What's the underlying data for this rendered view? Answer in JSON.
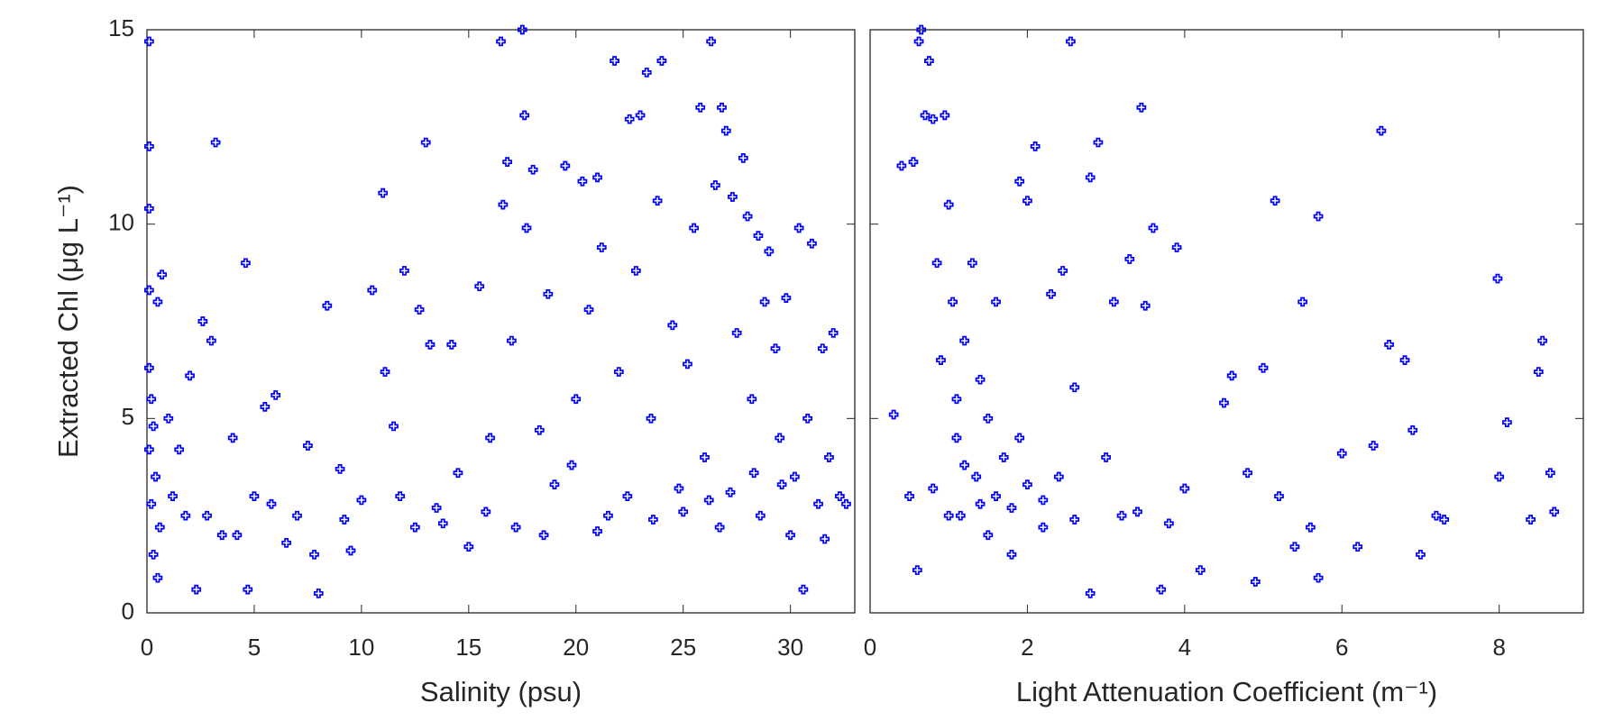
{
  "chart_data": [
    {
      "type": "scatter",
      "xlabel": "Salinity (psu)",
      "ylabel": "Extracted Chl (μg L⁻¹)",
      "color": "#0000ff",
      "xlim": [
        0,
        33
      ],
      "xticks": [
        0,
        5,
        10,
        15,
        20,
        25,
        30
      ],
      "ylim": [
        0,
        15
      ],
      "yticks": [
        0,
        5,
        10,
        15
      ],
      "x": [
        0.1,
        0.1,
        0.1,
        0.1,
        0.5,
        0.7,
        0.1,
        0.2,
        0.3,
        0.1,
        0.4,
        0.2,
        0.6,
        0.3,
        0.5,
        1.0,
        1.5,
        1.8,
        2.0,
        2.3,
        2.6,
        3.0,
        3.2,
        3.5,
        4.0,
        4.6,
        4.7,
        5.0,
        5.5,
        6.0,
        6.5,
        7.0,
        7.5,
        8.0,
        8.4,
        9.0,
        9.5,
        10.0,
        10.5,
        11.0,
        11.1,
        11.5,
        12.0,
        12.5,
        12.7,
        13.0,
        13.2,
        13.5,
        14.2,
        14.5,
        15.0,
        15.5,
        16.0,
        16.5,
        16.6,
        16.8,
        17.0,
        17.5,
        17.6,
        17.7,
        18.0,
        18.3,
        18.7,
        19.0,
        19.5,
        20.0,
        20.3,
        20.6,
        21.0,
        21.2,
        21.5,
        21.8,
        22.0,
        22.5,
        22.8,
        23.0,
        23.3,
        23.5,
        23.8,
        24.0,
        24.5,
        24.8,
        25.2,
        25.5,
        25.8,
        26.0,
        26.3,
        26.5,
        26.8,
        27.0,
        27.3,
        27.5,
        27.8,
        28.0,
        28.2,
        28.5,
        28.8,
        29.0,
        29.3,
        29.5,
        29.8,
        30.0,
        30.2,
        30.4,
        30.6,
        30.8,
        31.0,
        31.3,
        31.5,
        31.8,
        32.0,
        32.3,
        32.6,
        1.2,
        2.8,
        4.2,
        5.8,
        7.8,
        9.2,
        11.8,
        13.8,
        15.8,
        17.2,
        18.5,
        19.8,
        21.0,
        22.4,
        23.6,
        25.0,
        26.2,
        27.2,
        28.6,
        29.6,
        31.6,
        26.7,
        28.3
      ],
      "values": [
        14.7,
        12,
        10.4,
        8.3,
        8.0,
        8.7,
        6.3,
        5.5,
        4.8,
        4.2,
        3.5,
        2.8,
        2.2,
        1.5,
        0.9,
        5.0,
        4.2,
        2.5,
        6.1,
        0.6,
        7.5,
        7.0,
        12.1,
        2.0,
        4.5,
        9.0,
        0.6,
        3.0,
        5.3,
        5.6,
        1.8,
        2.5,
        4.3,
        0.5,
        7.9,
        3.7,
        1.6,
        2.9,
        8.3,
        10.8,
        6.2,
        4.8,
        8.8,
        2.2,
        7.8,
        12.1,
        6.9,
        2.7,
        6.9,
        3.6,
        1.7,
        8.4,
        4.5,
        14.7,
        10.5,
        11.6,
        7.0,
        15.0,
        12.8,
        9.9,
        11.4,
        4.7,
        8.2,
        3.3,
        11.5,
        5.5,
        11.1,
        7.8,
        11.2,
        9.4,
        2.5,
        14.2,
        6.2,
        12.7,
        8.8,
        12.8,
        13.9,
        5.0,
        10.6,
        14.2,
        7.4,
        3.2,
        6.4,
        9.9,
        13.0,
        4.0,
        14.7,
        11.0,
        13.0,
        12.4,
        10.7,
        7.2,
        11.7,
        10.2,
        5.5,
        9.7,
        8.0,
        9.3,
        6.8,
        4.5,
        8.1,
        2.0,
        3.5,
        9.9,
        0.6,
        5.0,
        9.5,
        2.8,
        6.8,
        4.0,
        7.2,
        3.0,
        2.8,
        3.0,
        2.5,
        2.0,
        2.8,
        1.5,
        2.4,
        3.0,
        2.3,
        2.6,
        2.2,
        2.0,
        3.8,
        2.1,
        3.0,
        2.4,
        2.6,
        2.9,
        3.1,
        2.5,
        3.3,
        1.9,
        2.2,
        3.6
      ]
    },
    {
      "type": "scatter",
      "xlabel": "Light Attenuation Coefficient (m⁻¹)",
      "color": "#0000ff",
      "xlim": [
        0,
        9.07
      ],
      "xticks": [
        0,
        2,
        4,
        6,
        8
      ],
      "ylim": [
        0,
        15
      ],
      "yticks": [
        0,
        5,
        10,
        15
      ],
      "x": [
        0.3,
        0.4,
        0.5,
        0.55,
        0.6,
        0.62,
        0.65,
        0.7,
        0.75,
        0.8,
        0.85,
        0.9,
        0.95,
        1.0,
        1.05,
        1.1,
        1.15,
        1.2,
        1.3,
        1.35,
        1.4,
        1.5,
        1.6,
        1.7,
        1.8,
        1.9,
        2.0,
        2.1,
        2.2,
        2.3,
        2.45,
        2.55,
        2.6,
        2.8,
        2.8,
        2.9,
        3.0,
        3.1,
        3.2,
        3.3,
        3.45,
        3.5,
        3.6,
        3.7,
        3.9,
        4.0,
        4.2,
        4.5,
        4.6,
        4.8,
        4.9,
        5.0,
        5.15,
        5.2,
        5.4,
        5.5,
        5.6,
        5.7,
        5.7,
        6.0,
        6.2,
        6.4,
        6.5,
        6.6,
        6.8,
        6.9,
        7.0,
        7.2,
        7.3,
        7.98,
        8.0,
        8.1,
        8.4,
        8.5,
        8.55,
        8.65,
        8.7,
        0.8,
        1.0,
        1.2,
        1.4,
        1.6,
        1.8,
        2.0,
        2.2,
        2.4,
        2.6,
        3.4,
        3.8,
        1.1,
        1.5,
        1.9
      ],
      "values": [
        5.1,
        11.5,
        3.0,
        11.6,
        1.1,
        14.7,
        15.0,
        12.8,
        14.2,
        12.7,
        9.0,
        6.5,
        12.8,
        10.5,
        8.0,
        4.5,
        2.5,
        7.0,
        9.0,
        3.5,
        6.0,
        2.0,
        8.0,
        4.0,
        1.5,
        11.1,
        10.6,
        12.0,
        2.2,
        8.2,
        8.8,
        14.7,
        5.8,
        11.2,
        0.5,
        12.1,
        4.0,
        8.0,
        2.5,
        9.1,
        13.0,
        7.9,
        9.9,
        0.6,
        9.4,
        3.2,
        1.1,
        5.4,
        6.1,
        3.6,
        0.8,
        6.3,
        10.6,
        3.0,
        1.7,
        8.0,
        2.2,
        10.2,
        0.9,
        4.1,
        1.7,
        4.3,
        12.4,
        6.9,
        6.5,
        4.7,
        1.5,
        2.5,
        2.4,
        8.6,
        3.5,
        4.9,
        2.4,
        6.2,
        7.0,
        3.6,
        2.6,
        3.2,
        2.5,
        3.8,
        2.8,
        3.0,
        2.7,
        3.3,
        2.9,
        3.5,
        2.4,
        2.6,
        2.3,
        5.5,
        5.0,
        4.5
      ]
    }
  ]
}
